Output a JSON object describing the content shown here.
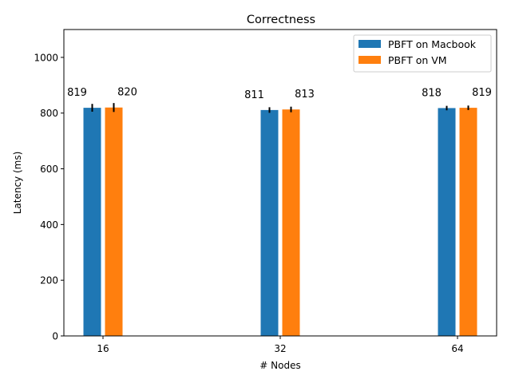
{
  "chart_data": {
    "type": "bar",
    "title": "Correctness",
    "xlabel": "# Nodes",
    "ylabel": "Latency (ms)",
    "categories": [
      "16",
      "32",
      "64"
    ],
    "ylim": [
      0,
      1100
    ],
    "yticks": [
      0,
      200,
      400,
      600,
      800,
      1000
    ],
    "grid": false,
    "legend_position": "top-right",
    "series": [
      {
        "name": "PBFT on Macbook",
        "color": "#1f77b4",
        "values": [
          819,
          811,
          818
        ],
        "errors": [
          14,
          10,
          8
        ],
        "labels": [
          "819",
          "811",
          "818"
        ]
      },
      {
        "name": "PBFT on VM",
        "color": "#ff7f0e",
        "values": [
          820,
          813,
          819
        ],
        "errors": [
          16,
          10,
          8
        ],
        "labels": [
          "820",
          "813",
          "819"
        ]
      }
    ]
  }
}
